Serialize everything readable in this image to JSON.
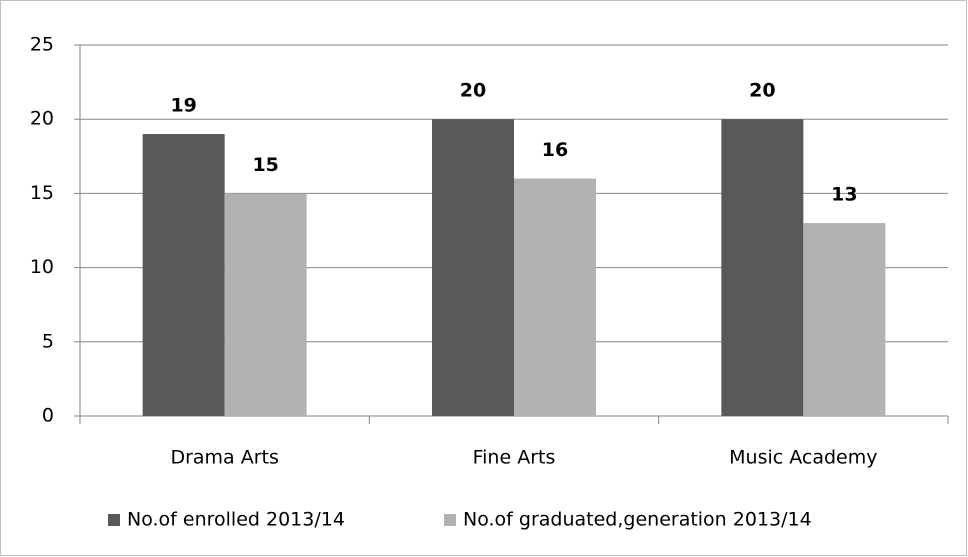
{
  "chart_data": {
    "type": "bar",
    "categories": [
      "Drama Arts",
      "Fine Arts",
      "Music Academy"
    ],
    "series": [
      {
        "name": "No.of enrolled 2013/14",
        "color": "#595959",
        "values": [
          19,
          20,
          20
        ]
      },
      {
        "name": "No.of graduated,generation 2013/14",
        "color": "#b2b2b2",
        "values": [
          15,
          16,
          13
        ]
      }
    ],
    "ylim": [
      0,
      25
    ],
    "yticks": [
      0,
      5,
      10,
      15,
      20,
      25
    ],
    "grid": true,
    "legend": "bottom"
  }
}
